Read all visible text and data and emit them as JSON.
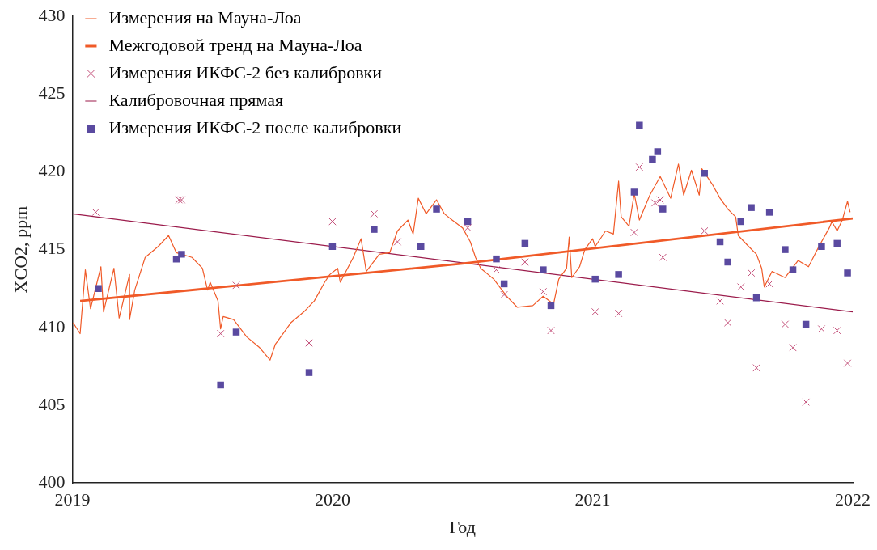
{
  "chart_data": {
    "type": "line",
    "xlabel": "Год",
    "ylabel": "XCO2, ppm",
    "xlim": [
      2019,
      2022
    ],
    "xticks": [
      2019,
      2020,
      2021,
      2022
    ],
    "ylim": [
      400,
      430
    ],
    "yticks": [
      400,
      405,
      410,
      415,
      420,
      425,
      430
    ],
    "grid": false,
    "legend": "top left",
    "series": [
      {
        "name": "Измерения на Мауна-Лоа",
        "color": "#f05a28",
        "marker": "none",
        "x": [
          2019.003,
          2019.03,
          2019.05,
          2019.07,
          2019.11,
          2019.12,
          2019.16,
          2019.18,
          2019.22,
          2019.22,
          2019.24,
          2019.28,
          2019.33,
          2019.37,
          2019.4,
          2019.46,
          2019.5,
          2019.52,
          2019.53,
          2019.56,
          2019.57,
          2019.58,
          2019.62,
          2019.67,
          2019.72,
          2019.76,
          2019.78,
          2019.84,
          2019.89,
          2019.93,
          2019.97,
          2019.99,
          2020.02,
          2020.03,
          2020.08,
          2020.11,
          2020.13,
          2020.18,
          2020.22,
          2020.25,
          2020.29,
          2020.31,
          2020.33,
          2020.36,
          2020.4,
          2020.43,
          2020.46,
          2020.5,
          2020.53,
          2020.55,
          2020.57,
          2020.62,
          2020.67,
          2020.71,
          2020.77,
          2020.81,
          2020.85,
          2020.87,
          2020.9,
          2020.91,
          2020.92,
          2020.95,
          2020.97,
          2021.0,
          2021.01,
          2021.05,
          2021.08,
          2021.1,
          2021.11,
          2021.14,
          2021.16,
          2021.18,
          2021.22,
          2021.26,
          2021.3,
          2021.33,
          2021.35,
          2021.38,
          2021.41,
          2021.42,
          2021.46,
          2021.49,
          2021.52,
          2021.55,
          2021.56,
          2021.6,
          2021.63,
          2021.65,
          2021.66,
          2021.69,
          2021.74,
          2021.79,
          2021.83,
          2021.87,
          2021.91,
          2021.92,
          2021.94,
          2021.96,
          2021.98,
          2021.99
        ],
        "values": [
          410.3,
          409.6,
          413.7,
          411.2,
          413.9,
          411.0,
          413.8,
          410.6,
          413.4,
          410.5,
          412.4,
          414.5,
          415.2,
          415.9,
          414.8,
          414.5,
          413.8,
          412.4,
          412.9,
          411.7,
          409.9,
          410.7,
          410.5,
          409.4,
          408.7,
          407.9,
          408.9,
          410.3,
          411.0,
          411.7,
          412.9,
          413.4,
          413.8,
          412.9,
          414.5,
          415.7,
          413.6,
          414.7,
          414.8,
          416.2,
          416.9,
          416.0,
          418.3,
          417.3,
          418.2,
          417.3,
          416.9,
          416.4,
          415.5,
          414.5,
          413.8,
          413.1,
          412.0,
          411.3,
          411.4,
          412.0,
          411.5,
          413.1,
          413.8,
          415.8,
          413.2,
          413.9,
          415.0,
          415.7,
          415.2,
          416.2,
          416.0,
          419.4,
          417.1,
          416.5,
          418.6,
          416.9,
          418.5,
          419.7,
          418.3,
          420.5,
          418.5,
          420.1,
          418.5,
          420.2,
          419.2,
          418.3,
          417.6,
          417.1,
          415.9,
          415.2,
          414.7,
          413.8,
          412.6,
          413.6,
          413.2,
          414.3,
          413.9,
          415.2,
          416.4,
          416.8,
          416.2,
          416.9,
          418.1,
          417.4
        ]
      },
      {
        "name": "Межгодовой тренд на Мауна-Лоа",
        "color": "#f05a28",
        "marker": "none",
        "x": [
          2019.03,
          2020.5,
          2022
        ],
        "values": [
          411.7,
          414.1,
          417.0
        ]
      },
      {
        "name": "Измерения ИКФС-2 без калибровки",
        "type": "scatter",
        "color": "#c4507a",
        "marker": "cross",
        "x": [
          2019.09,
          2019.41,
          2019.42,
          2019.57,
          2019.63,
          2019.91,
          2020.0,
          2020.16,
          2020.25,
          2020.52,
          2020.63,
          2020.66,
          2020.74,
          2020.81,
          2020.84,
          2021.01,
          2021.1,
          2021.16,
          2021.18,
          2021.24,
          2021.26,
          2021.27,
          2021.43,
          2021.49,
          2021.52,
          2021.57,
          2021.61,
          2021.63,
          2021.68,
          2021.74,
          2021.77,
          2021.82,
          2021.88,
          2021.94,
          2021.98
        ],
        "values": [
          417.4,
          418.2,
          418.2,
          409.6,
          412.7,
          409.0,
          416.8,
          417.3,
          415.5,
          416.4,
          413.7,
          412.1,
          414.2,
          412.3,
          409.8,
          411.0,
          410.9,
          416.1,
          420.3,
          418.0,
          418.2,
          414.5,
          416.2,
          411.7,
          410.3,
          412.6,
          413.5,
          407.4,
          412.8,
          410.2,
          408.7,
          405.2,
          409.9,
          409.8,
          407.7
        ]
      },
      {
        "name": "Калибровочная прямая",
        "color": "#9b1b4b",
        "marker": "none",
        "x": [
          2019,
          2022
        ],
        "values": [
          417.3,
          411.0
        ]
      },
      {
        "name": "Измерения ИКФС-2 после калибровки",
        "type": "scatter",
        "color": "#5a4aa0",
        "marker": "square",
        "x": [
          2019.1,
          2019.4,
          2019.42,
          2019.57,
          2019.63,
          2019.91,
          2020.0,
          2020.16,
          2020.34,
          2020.4,
          2020.52,
          2020.63,
          2020.66,
          2020.74,
          2020.81,
          2020.84,
          2021.01,
          2021.1,
          2021.16,
          2021.18,
          2021.23,
          2021.25,
          2021.27,
          2021.43,
          2021.49,
          2021.52,
          2021.57,
          2021.61,
          2021.63,
          2021.68,
          2021.74,
          2021.77,
          2021.82,
          2021.88,
          2021.94,
          2021.98
        ],
        "values": [
          412.5,
          414.4,
          414.7,
          406.3,
          409.7,
          407.1,
          415.2,
          416.3,
          415.2,
          417.6,
          416.8,
          414.4,
          412.8,
          415.4,
          413.7,
          411.4,
          413.1,
          413.4,
          418.7,
          423.0,
          420.8,
          421.3,
          417.6,
          419.9,
          415.5,
          414.2,
          416.8,
          417.7,
          411.9,
          417.4,
          415.0,
          413.7,
          410.2,
          415.2,
          415.4,
          413.5
        ]
      }
    ]
  }
}
